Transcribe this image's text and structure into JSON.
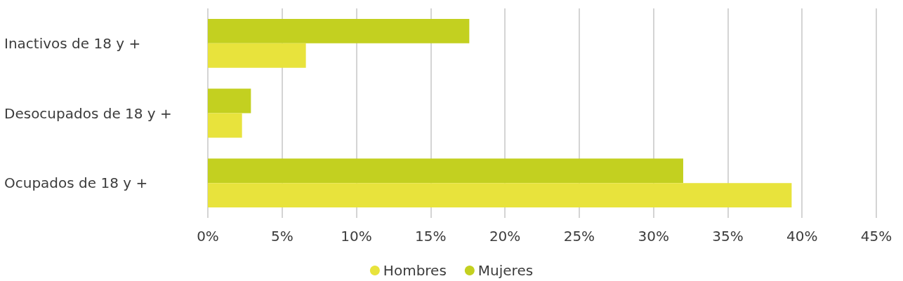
{
  "chart_data": {
    "type": "bar",
    "orientation": "horizontal",
    "categories": [
      "Inactivos de 18 y +",
      "Desocupados de 18 y +",
      "Ocupados de 18 y +"
    ],
    "series": [
      {
        "name": "Hombres",
        "color": "#e8e33c",
        "values": [
          6.6,
          2.3,
          39.3
        ]
      },
      {
        "name": "Mujeres",
        "color": "#c3d020",
        "values": [
          17.6,
          2.9,
          32.0
        ]
      }
    ],
    "xlim": [
      0,
      45
    ],
    "xticks": [
      {
        "value": 0,
        "label": "0%"
      },
      {
        "value": 5,
        "label": "5%"
      },
      {
        "value": 10,
        "label": "10%"
      },
      {
        "value": 15,
        "label": "15%"
      },
      {
        "value": 20,
        "label": "20%"
      },
      {
        "value": 25,
        "label": "25%"
      },
      {
        "value": 30,
        "label": "30%"
      },
      {
        "value": 35,
        "label": "35%"
      },
      {
        "value": 40,
        "label": "40%"
      },
      {
        "value": 45,
        "label": "45%"
      }
    ],
    "grid": "x",
    "legend": "bottom"
  }
}
